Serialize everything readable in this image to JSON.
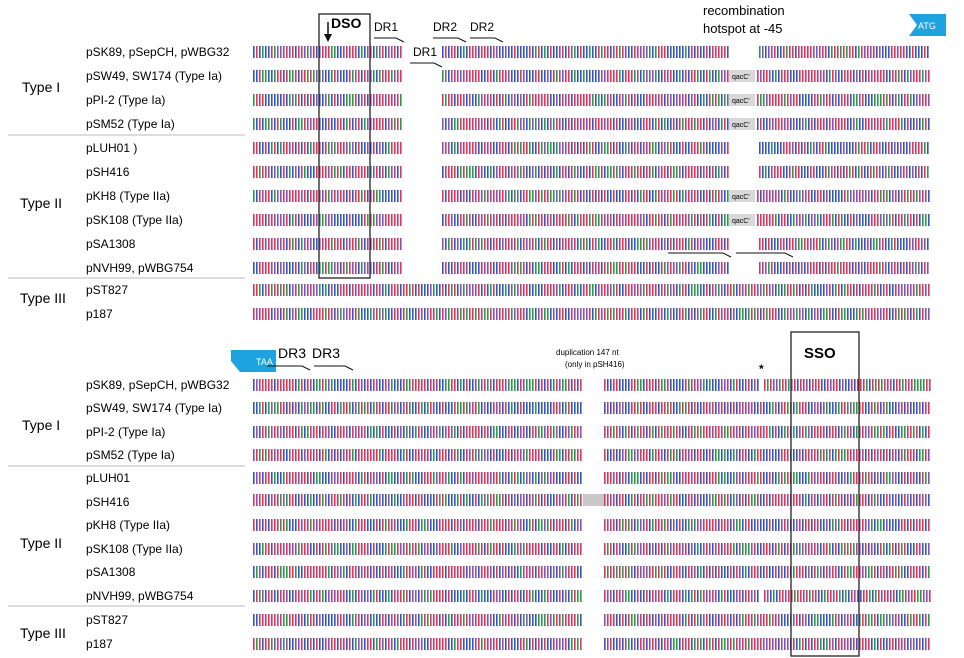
{
  "panels": [
    {
      "id": "top",
      "labels": {
        "dso": "DSO",
        "dr1a": "DR1",
        "dr1b": "DR1",
        "dr2a": "DR2",
        "dr2b": "DR2",
        "recomb1": "recombination",
        "recomb2": "hotspot at -45",
        "flag": "ATG"
      },
      "groups": [
        {
          "label": "Type I",
          "rows": [
            "pSK89, pSepCH, pWBG32",
            "pSW49, SW174 (Type Ia)",
            "pPI-2 (Type Ia)",
            "pSM52 (Type Ia)"
          ]
        },
        {
          "label": "Type II",
          "rows": [
            "pLUH01 )",
            "pSH416",
            "pKH8  (Type IIa)",
            "pSK108  (Type IIa)",
            "pSA1308",
            "pNVH99, pWBG754"
          ]
        },
        {
          "label": "Type III",
          "rows": [
            "pST827",
            "p187"
          ]
        }
      ],
      "box_tag": "qacC'"
    },
    {
      "id": "bottom",
      "labels": {
        "flag": "TAA",
        "dr3a": "DR3",
        "dr3b": "DR3",
        "dup1": "duplication 147 nt",
        "dup2": "(only in pSH416)",
        "star": "*",
        "sso": "SSO"
      },
      "groups": [
        {
          "label": "Type I",
          "rows": [
            "pSK89, pSepCH, pWBG32",
            "pSW49, SW174 (Type Ia)",
            "pPI-2 (Type Ia)",
            "pSM52 (Type Ia)"
          ]
        },
        {
          "label": "Type II",
          "rows": [
            "pLUH01",
            "pSH416",
            "pKH8 (Type IIa)",
            "pSK108 (Type IIa)",
            "pSA1308",
            "pNVH99, pWBG754"
          ]
        },
        {
          "label": "Type III",
          "rows": [
            "pST827",
            "p187"
          ]
        }
      ]
    }
  ],
  "nucleotide_colors": {
    "A": "#e0335d",
    "C": "#3355c8",
    "G": "#2a9a48",
    "T": "#8a4fb8"
  },
  "colors": {
    "flag": "#1fa3e0",
    "gap_fill": "#c8c8c8",
    "tag_fill": "#d8d8d8",
    "box_stroke": "#222222"
  }
}
